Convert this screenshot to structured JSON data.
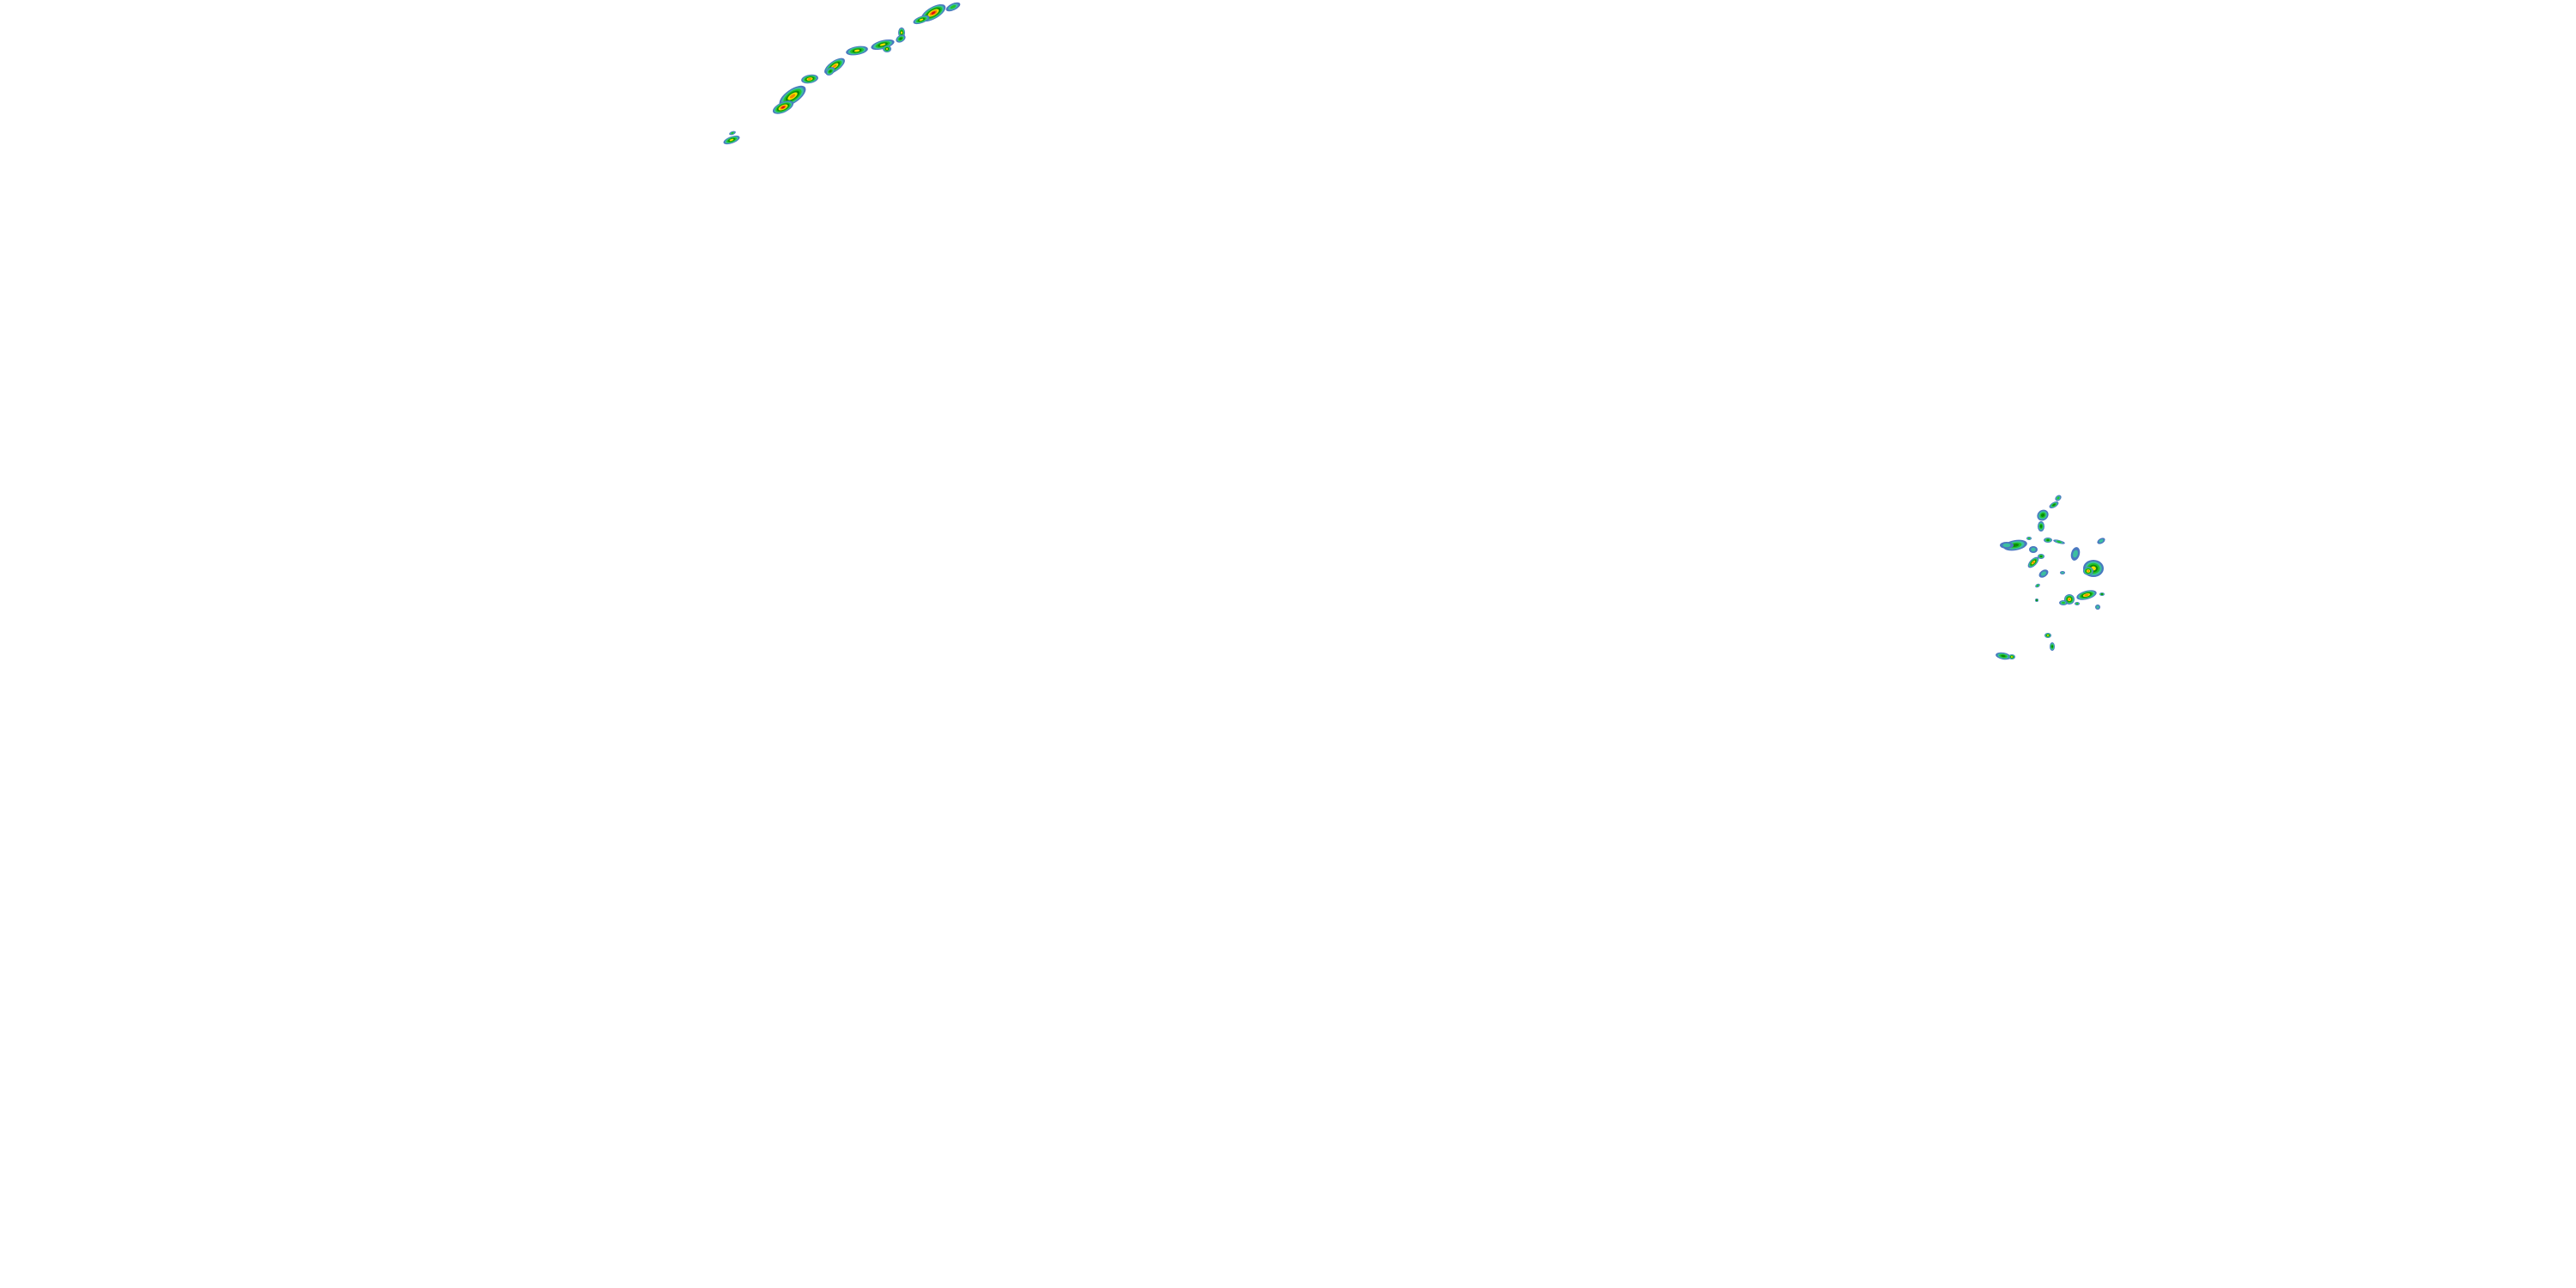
{
  "map": {
    "background": "#ffffff",
    "layer": "radar-reflectivity",
    "palette": [
      "#4a78c0",
      "#3cbfa0",
      "#22c42a",
      "#0c8a0c",
      "#f2e200",
      "#f08a00",
      "#e01010"
    ]
  }
}
